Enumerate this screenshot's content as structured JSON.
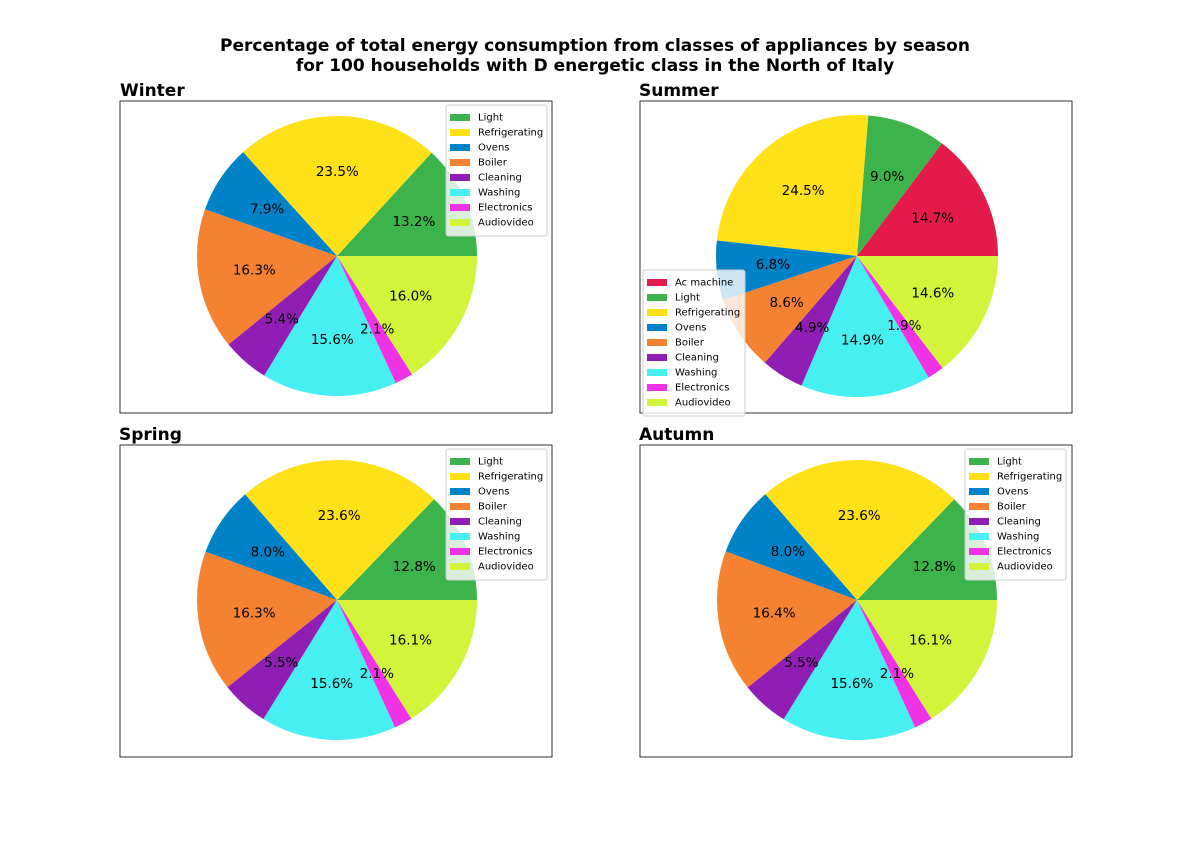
{
  "title": {
    "line1": "Percentage of total energy consumption from classes of appliances by season",
    "line2": "for 100 households with D energetic class in the North of Italy"
  },
  "colors": {
    "Ac machine": "#e31a4a",
    "Light": "#3cb44b",
    "Refrigerating": "#ffe119",
    "Ovens": "#0082c8",
    "Boiler": "#f58231",
    "Cleaning": "#911eb4",
    "Washing": "#46f0f0",
    "Electronics": "#f032e6",
    "Audiovideo": "#d2f53c"
  },
  "chart_data": [
    {
      "type": "pie",
      "title": "Winter",
      "legend_position": "top-right",
      "labels": [
        "Light",
        "Refrigerating",
        "Ovens",
        "Boiler",
        "Cleaning",
        "Washing",
        "Electronics",
        "Audiovideo"
      ],
      "values": [
        13.2,
        23.5,
        7.9,
        16.3,
        5.4,
        15.6,
        2.1,
        16.0
      ],
      "value_labels": [
        "13.2%",
        "23.5%",
        "7.9%",
        "16.3%",
        "5.4%",
        "15.6%",
        "2.1%",
        "16.0%"
      ]
    },
    {
      "type": "pie",
      "title": "Summer",
      "legend_position": "lower-left",
      "labels": [
        "Ac machine",
        "Light",
        "Refrigerating",
        "Ovens",
        "Boiler",
        "Cleaning",
        "Washing",
        "Electronics",
        "Audiovideo"
      ],
      "values": [
        14.7,
        9.0,
        24.5,
        6.8,
        8.6,
        4.9,
        14.9,
        1.9,
        14.6
      ],
      "value_labels": [
        "14.7%",
        "9.0%",
        "24.5%",
        "6.8%",
        "8.6%",
        "4.9%",
        "14.9%",
        "1.9%",
        "14.6%"
      ]
    },
    {
      "type": "pie",
      "title": "Spring",
      "legend_position": "top-right",
      "labels": [
        "Light",
        "Refrigerating",
        "Ovens",
        "Boiler",
        "Cleaning",
        "Washing",
        "Electronics",
        "Audiovideo"
      ],
      "values": [
        12.8,
        23.6,
        8.0,
        16.3,
        5.5,
        15.6,
        2.1,
        16.1
      ],
      "value_labels": [
        "12.8%",
        "23.6%",
        "8.0%",
        "16.3%",
        "5.5%",
        "15.6%",
        "2.1%",
        "16.1%"
      ]
    },
    {
      "type": "pie",
      "title": "Autumn",
      "legend_position": "top-right",
      "labels": [
        "Light",
        "Refrigerating",
        "Ovens",
        "Boiler",
        "Cleaning",
        "Washing",
        "Electronics",
        "Audiovideo"
      ],
      "values": [
        12.8,
        23.6,
        8.0,
        16.4,
        5.5,
        15.6,
        2.1,
        16.1
      ],
      "value_labels": [
        "12.8%",
        "23.6%",
        "8.0%",
        "16.4%",
        "5.5%",
        "15.6%",
        "2.1%",
        "16.1%"
      ]
    }
  ]
}
